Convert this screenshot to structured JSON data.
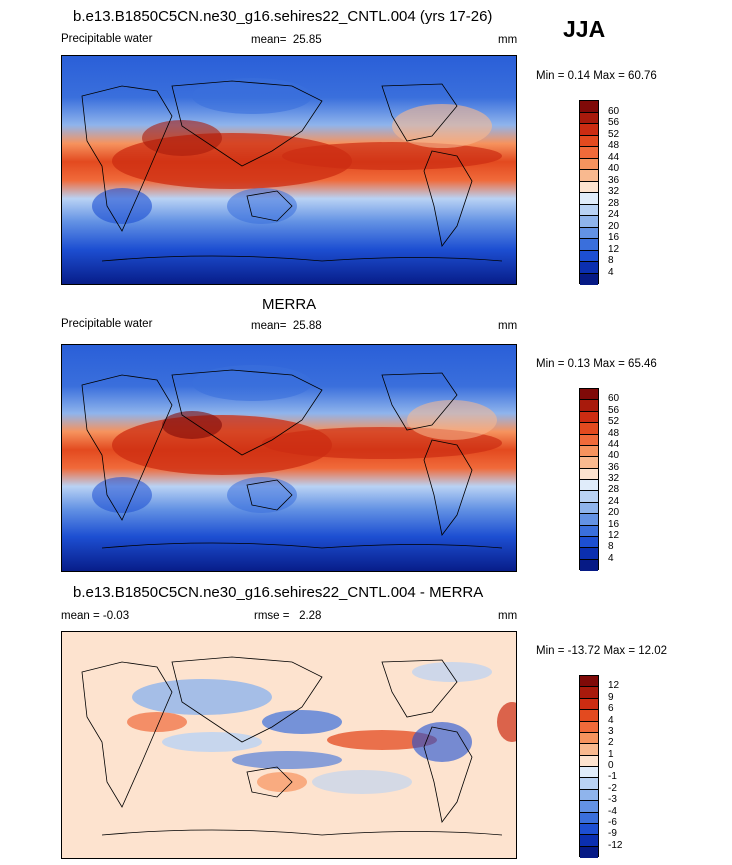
{
  "season": "JJA",
  "panels": [
    {
      "id": "model",
      "title": "b.e13.B1850C5CN.ne30_g16.sehires22_CNTL.004 (yrs 17-26)",
      "left_label": "Precipitable water",
      "stat_label": "mean=",
      "stat_value": "25.85",
      "units": "mm",
      "minmax": "Min =  0.14 Max =  60.76",
      "colorbar": {
        "ticks": [
          "60",
          "56",
          "52",
          "48",
          "44",
          "40",
          "36",
          "32",
          "28",
          "24",
          "20",
          "16",
          "12",
          "8",
          "4"
        ],
        "colors": [
          "#7f0a08",
          "#a81a0c",
          "#cc2c12",
          "#e34a1f",
          "#f06a3a",
          "#f6935e",
          "#f9b98f",
          "#fde3cf",
          "#e0ecfa",
          "#b9d2f4",
          "#8fb4ec",
          "#6392e4",
          "#3a6fdc",
          "#1d4fd2",
          "#0b2fb0",
          "#061a85"
        ]
      },
      "map_style": "mean"
    },
    {
      "id": "obs",
      "title": "MERRA",
      "left_label": "Precipitable water",
      "stat_label": "mean=",
      "stat_value": "25.88",
      "units": "mm",
      "minmax": "Min =  0.13 Max =  65.46",
      "colorbar": {
        "ticks": [
          "60",
          "56",
          "52",
          "48",
          "44",
          "40",
          "36",
          "32",
          "28",
          "24",
          "20",
          "16",
          "12",
          "8",
          "4"
        ],
        "colors": [
          "#7f0a08",
          "#a81a0c",
          "#cc2c12",
          "#e34a1f",
          "#f06a3a",
          "#f6935e",
          "#f9b98f",
          "#fde3cf",
          "#e0ecfa",
          "#b9d2f4",
          "#8fb4ec",
          "#6392e4",
          "#3a6fdc",
          "#1d4fd2",
          "#0b2fb0",
          "#061a85"
        ]
      },
      "map_style": "mean"
    },
    {
      "id": "diff",
      "title": "b.e13.B1850C5CN.ne30_g16.sehires22_CNTL.004 - MERRA",
      "left_label": "mean =  -0.03",
      "stat_label": "rmse =",
      "stat_value": "2.28",
      "units": "mm",
      "minmax": "Min = -13.72 Max =  12.02",
      "colorbar": {
        "ticks": [
          "12",
          "9",
          "6",
          "4",
          "3",
          "2",
          "1",
          "0",
          "-1",
          "-2",
          "-3",
          "-4",
          "-6",
          "-9",
          "-12"
        ],
        "colors": [
          "#7f0a08",
          "#a81a0c",
          "#cc2c12",
          "#e34a1f",
          "#f06a3a",
          "#f6935e",
          "#f9b98f",
          "#fde3cf",
          "#e0ecfa",
          "#b9d2f4",
          "#8fb4ec",
          "#6392e4",
          "#3a6fdc",
          "#1d4fd2",
          "#0b2fb0",
          "#061a85"
        ]
      },
      "map_style": "diff"
    }
  ]
}
